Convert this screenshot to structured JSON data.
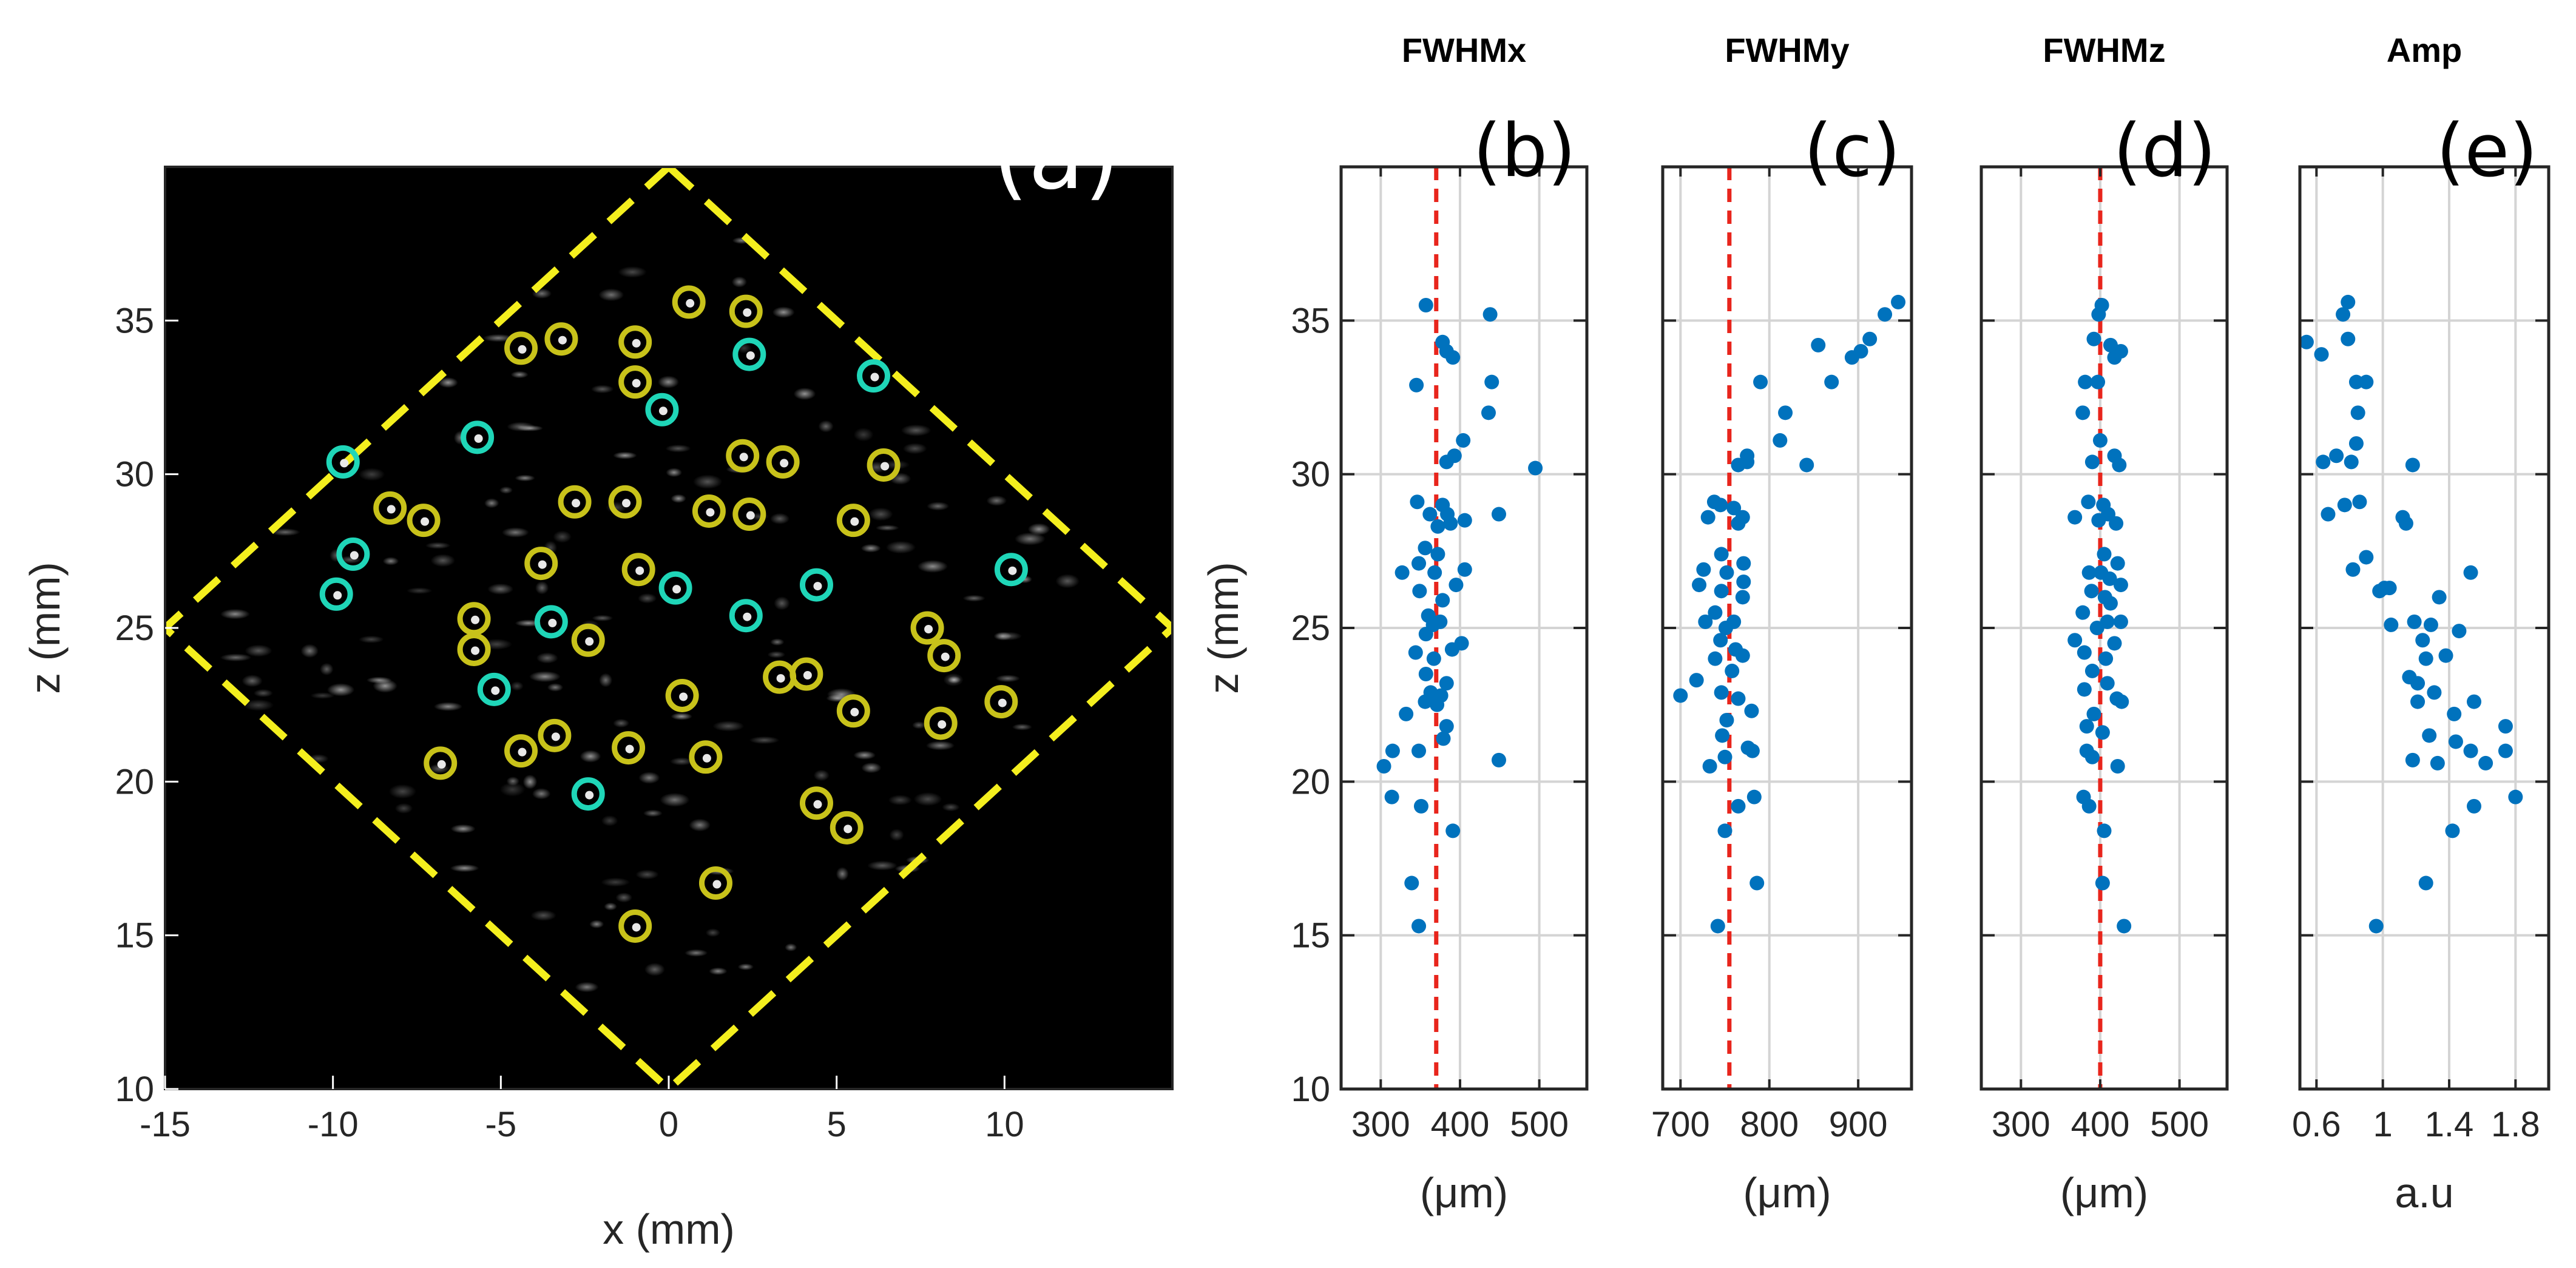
{
  "chart_data": [
    {
      "type": "scatter",
      "panel": "(a)",
      "xlabel": "x (mm)",
      "ylabel": "z (mm)",
      "xlim": [
        -15,
        15
      ],
      "ylim": [
        10,
        40
      ],
      "xticks": [
        "-15",
        "-10",
        "-5",
        "0",
        "5",
        "10"
      ],
      "yticks": [
        "10",
        "15",
        "20",
        "25",
        "30",
        "35"
      ],
      "background": "#000000",
      "boundary_color": "#f4ef1e",
      "boundary_vertices": [
        [
          0,
          40
        ],
        [
          15,
          25
        ],
        [
          0,
          10
        ],
        [
          -15,
          25
        ]
      ],
      "series": [
        {
          "marker_color": "#1fd6b8",
          "points": [
            [
              2.4,
              33.9
            ],
            [
              6.1,
              33.2
            ],
            [
              -0.2,
              32.1
            ],
            [
              -5.7,
              31.2
            ],
            [
              -9.7,
              30.4
            ],
            [
              -9.4,
              27.4
            ],
            [
              -9.9,
              26.1
            ],
            [
              0.2,
              26.3
            ],
            [
              4.4,
              26.4
            ],
            [
              10.2,
              26.9
            ],
            [
              -3.5,
              25.2
            ],
            [
              2.3,
              25.4
            ],
            [
              -5.2,
              23.0
            ],
            [
              -2.4,
              19.6
            ]
          ]
        },
        {
          "marker_color": "#c8c21a",
          "points": [
            [
              0.6,
              35.6
            ],
            [
              2.3,
              35.3
            ],
            [
              -3.2,
              34.4
            ],
            [
              -4.4,
              34.1
            ],
            [
              -1.0,
              34.3
            ],
            [
              -1.0,
              33.0
            ],
            [
              2.2,
              30.6
            ],
            [
              3.4,
              30.4
            ],
            [
              6.4,
              30.3
            ],
            [
              -8.3,
              28.9
            ],
            [
              -7.3,
              28.5
            ],
            [
              -2.8,
              29.1
            ],
            [
              -1.3,
              29.1
            ],
            [
              1.2,
              28.8
            ],
            [
              2.4,
              28.7
            ],
            [
              5.5,
              28.5
            ],
            [
              -3.8,
              27.1
            ],
            [
              -0.9,
              26.9
            ],
            [
              -5.8,
              25.3
            ],
            [
              -5.8,
              24.3
            ],
            [
              -2.4,
              24.6
            ],
            [
              7.7,
              25.0
            ],
            [
              8.2,
              24.1
            ],
            [
              3.3,
              23.4
            ],
            [
              4.1,
              23.5
            ],
            [
              0.4,
              22.8
            ],
            [
              5.5,
              22.3
            ],
            [
              9.9,
              22.6
            ],
            [
              8.1,
              21.9
            ],
            [
              -4.4,
              21.0
            ],
            [
              -3.4,
              21.5
            ],
            [
              -1.2,
              21.1
            ],
            [
              1.1,
              20.8
            ],
            [
              -6.8,
              20.6
            ],
            [
              4.4,
              19.3
            ],
            [
              5.3,
              18.5
            ],
            [
              1.4,
              16.7
            ],
            [
              -1.0,
              15.3
            ]
          ]
        }
      ]
    },
    {
      "type": "scatter",
      "panel": "(b)",
      "title": "FWHMx",
      "xlabel": "(μm)",
      "ylabel": "z (mm)",
      "xlim": [
        250,
        560
      ],
      "ylim": [
        10,
        40
      ],
      "xticks": [
        "300",
        "400",
        "500"
      ],
      "yticks": [
        "10",
        "15",
        "20",
        "25",
        "30",
        "35"
      ],
      "reference_line_x": 370,
      "reference_line_color": "#e8251c",
      "marker_color": "#0072bd",
      "points": [
        [
          357,
          35.5
        ],
        [
          438,
          35.2
        ],
        [
          378,
          34.3
        ],
        [
          383,
          34.0
        ],
        [
          391,
          33.8
        ],
        [
          345,
          32.9
        ],
        [
          440,
          33.0
        ],
        [
          436,
          32.0
        ],
        [
          404,
          31.1
        ],
        [
          393,
          30.6
        ],
        [
          383,
          30.4
        ],
        [
          495,
          30.2
        ],
        [
          346,
          29.1
        ],
        [
          362,
          28.7
        ],
        [
          378,
          29.0
        ],
        [
          384,
          28.7
        ],
        [
          406,
          28.5
        ],
        [
          388,
          28.4
        ],
        [
          372,
          28.3
        ],
        [
          449,
          28.7
        ],
        [
          356,
          27.6
        ],
        [
          372,
          27.4
        ],
        [
          348,
          27.1
        ],
        [
          327,
          26.8
        ],
        [
          368,
          26.8
        ],
        [
          406,
          26.9
        ],
        [
          395,
          26.4
        ],
        [
          349,
          26.2
        ],
        [
          378,
          25.9
        ],
        [
          360,
          25.4
        ],
        [
          366,
          25.1
        ],
        [
          375,
          25.2
        ],
        [
          357,
          24.8
        ],
        [
          402,
          24.5
        ],
        [
          390,
          24.3
        ],
        [
          344,
          24.2
        ],
        [
          367,
          24.0
        ],
        [
          357,
          23.5
        ],
        [
          383,
          23.2
        ],
        [
          363,
          22.9
        ],
        [
          356,
          22.6
        ],
        [
          371,
          22.5
        ],
        [
          376,
          22.8
        ],
        [
          332,
          22.2
        ],
        [
          383,
          21.8
        ],
        [
          379,
          21.4
        ],
        [
          315,
          21.0
        ],
        [
          348,
          21.0
        ],
        [
          304,
          20.5
        ],
        [
          449,
          20.7
        ],
        [
          314,
          19.5
        ],
        [
          351,
          19.2
        ],
        [
          391,
          18.4
        ],
        [
          339,
          16.7
        ],
        [
          348,
          15.3
        ]
      ]
    },
    {
      "type": "scatter",
      "panel": "(c)",
      "title": "FWHMy",
      "xlabel": "(μm)",
      "ylabel": "",
      "xlim": [
        680,
        960
      ],
      "ylim": [
        10,
        40
      ],
      "xticks": [
        "700",
        "800",
        "900"
      ],
      "reference_line_x": 755,
      "reference_line_color": "#e8251c",
      "marker_color": "#0072bd",
      "points": [
        [
          945,
          35.6
        ],
        [
          930,
          35.2
        ],
        [
          913,
          34.4
        ],
        [
          855,
          34.2
        ],
        [
          903,
          34.0
        ],
        [
          893,
          33.8
        ],
        [
          870,
          33.0
        ],
        [
          790,
          33.0
        ],
        [
          818,
          32.0
        ],
        [
          812,
          31.1
        ],
        [
          775,
          30.6
        ],
        [
          765,
          30.3
        ],
        [
          775,
          30.4
        ],
        [
          842,
          30.3
        ],
        [
          738,
          29.1
        ],
        [
          760,
          28.9
        ],
        [
          745,
          29.0
        ],
        [
          731,
          28.6
        ],
        [
          770,
          28.6
        ],
        [
          765,
          28.4
        ],
        [
          746,
          27.4
        ],
        [
          771,
          27.1
        ],
        [
          726,
          26.9
        ],
        [
          752,
          26.8
        ],
        [
          771,
          26.5
        ],
        [
          746,
          26.2
        ],
        [
          721,
          26.4
        ],
        [
          770,
          26.0
        ],
        [
          739,
          25.5
        ],
        [
          760,
          25.2
        ],
        [
          728,
          25.2
        ],
        [
          751,
          25.0
        ],
        [
          745,
          24.6
        ],
        [
          762,
          24.3
        ],
        [
          739,
          24.0
        ],
        [
          770,
          24.1
        ],
        [
          758,
          23.6
        ],
        [
          718,
          23.3
        ],
        [
          746,
          22.9
        ],
        [
          765,
          22.7
        ],
        [
          700,
          22.8
        ],
        [
          780,
          22.3
        ],
        [
          752,
          22.0
        ],
        [
          747,
          21.5
        ],
        [
          776,
          21.1
        ],
        [
          781,
          21.0
        ],
        [
          750,
          20.8
        ],
        [
          733,
          20.5
        ],
        [
          783,
          19.5
        ],
        [
          765,
          19.2
        ],
        [
          750,
          18.4
        ],
        [
          786,
          16.7
        ],
        [
          742,
          15.3
        ]
      ]
    },
    {
      "type": "scatter",
      "panel": "(d)",
      "title": "FWHMz",
      "xlabel": "(μm)",
      "ylabel": "",
      "xlim": [
        250,
        560
      ],
      "ylim": [
        10,
        40
      ],
      "xticks": [
        "300",
        "400",
        "500"
      ],
      "reference_line_x": 400,
      "reference_line_color": "#e8251c",
      "marker_color": "#0072bd",
      "points": [
        [
          402,
          35.5
        ],
        [
          398,
          35.2
        ],
        [
          392,
          34.4
        ],
        [
          413,
          34.2
        ],
        [
          426,
          34.0
        ],
        [
          418,
          33.8
        ],
        [
          381,
          33.0
        ],
        [
          397,
          33.0
        ],
        [
          378,
          32.0
        ],
        [
          400,
          31.1
        ],
        [
          390,
          30.4
        ],
        [
          418,
          30.6
        ],
        [
          424,
          30.3
        ],
        [
          385,
          29.1
        ],
        [
          404,
          29.0
        ],
        [
          410,
          28.7
        ],
        [
          368,
          28.6
        ],
        [
          398,
          28.5
        ],
        [
          420,
          28.4
        ],
        [
          405,
          27.4
        ],
        [
          422,
          27.1
        ],
        [
          386,
          26.8
        ],
        [
          401,
          26.8
        ],
        [
          412,
          26.6
        ],
        [
          426,
          26.4
        ],
        [
          389,
          26.2
        ],
        [
          406,
          26.0
        ],
        [
          413,
          25.8
        ],
        [
          378,
          25.5
        ],
        [
          409,
          25.2
        ],
        [
          426,
          25.2
        ],
        [
          396,
          25.0
        ],
        [
          368,
          24.6
        ],
        [
          418,
          24.5
        ],
        [
          380,
          24.2
        ],
        [
          407,
          24.0
        ],
        [
          390,
          23.6
        ],
        [
          409,
          23.2
        ],
        [
          380,
          23.0
        ],
        [
          421,
          22.7
        ],
        [
          427,
          22.6
        ],
        [
          392,
          22.2
        ],
        [
          383,
          21.8
        ],
        [
          403,
          21.6
        ],
        [
          383,
          21.0
        ],
        [
          390,
          20.8
        ],
        [
          422,
          20.5
        ],
        [
          379,
          19.5
        ],
        [
          386,
          19.2
        ],
        [
          405,
          18.4
        ],
        [
          403,
          16.7
        ],
        [
          430,
          15.3
        ]
      ]
    },
    {
      "type": "scatter",
      "panel": "(e)",
      "title": "Amp",
      "xlabel": "a.u",
      "ylabel": "",
      "xlim": [
        0.5,
        2.0
      ],
      "ylim": [
        10,
        40
      ],
      "xticks": [
        "0.6",
        "1",
        "1.4",
        "1.8"
      ],
      "marker_color": "#0072bd",
      "points": [
        [
          0.79,
          35.6
        ],
        [
          0.76,
          35.2
        ],
        [
          0.54,
          34.3
        ],
        [
          0.79,
          34.4
        ],
        [
          0.63,
          33.9
        ],
        [
          0.84,
          33.0
        ],
        [
          0.9,
          33.0
        ],
        [
          0.85,
          32.0
        ],
        [
          0.84,
          31.0
        ],
        [
          0.72,
          30.6
        ],
        [
          0.81,
          30.4
        ],
        [
          0.64,
          30.4
        ],
        [
          1.18,
          30.3
        ],
        [
          0.77,
          29.0
        ],
        [
          0.86,
          29.1
        ],
        [
          1.12,
          28.6
        ],
        [
          0.67,
          28.7
        ],
        [
          1.14,
          28.4
        ],
        [
          0.9,
          27.3
        ],
        [
          0.82,
          26.9
        ],
        [
          1.53,
          26.8
        ],
        [
          1.04,
          26.3
        ],
        [
          0.98,
          26.2
        ],
        [
          1.01,
          26.3
        ],
        [
          1.34,
          26.0
        ],
        [
          1.05,
          25.1
        ],
        [
          1.19,
          25.2
        ],
        [
          1.29,
          25.1
        ],
        [
          1.46,
          24.9
        ],
        [
          1.24,
          24.6
        ],
        [
          1.26,
          24.0
        ],
        [
          1.38,
          24.1
        ],
        [
          1.16,
          23.4
        ],
        [
          1.21,
          23.2
        ],
        [
          1.31,
          22.9
        ],
        [
          1.21,
          22.6
        ],
        [
          1.55,
          22.6
        ],
        [
          1.43,
          22.2
        ],
        [
          1.74,
          21.8
        ],
        [
          1.28,
          21.5
        ],
        [
          1.44,
          21.3
        ],
        [
          1.53,
          21.0
        ],
        [
          1.74,
          21.0
        ],
        [
          1.18,
          20.7
        ],
        [
          1.33,
          20.6
        ],
        [
          1.62,
          20.6
        ],
        [
          1.8,
          19.5
        ],
        [
          1.55,
          19.2
        ],
        [
          1.42,
          18.4
        ],
        [
          1.26,
          16.7
        ],
        [
          0.96,
          15.3
        ]
      ]
    }
  ]
}
